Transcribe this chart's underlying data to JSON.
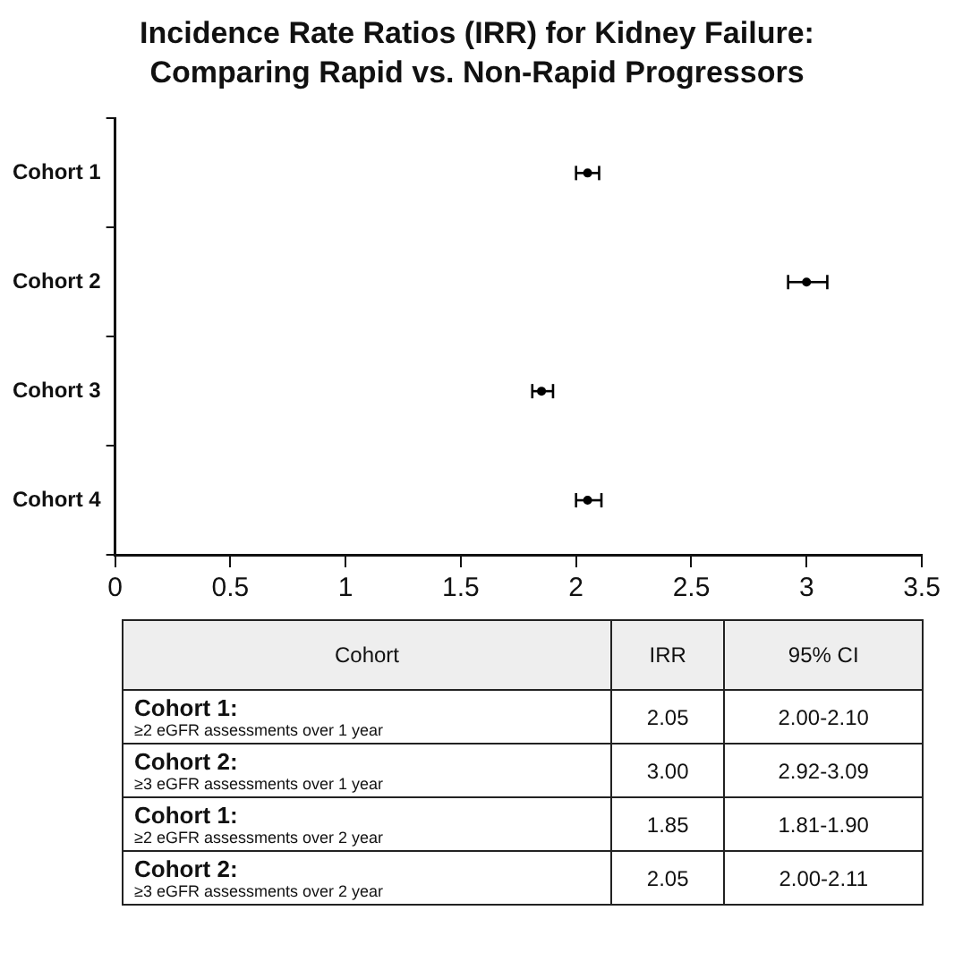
{
  "chart_data": {
    "type": "scatter",
    "title": "Incidence Rate Ratios (IRR) for Kidney Failure: Comparing Rapid vs. Non-Rapid Progressors",
    "orientation": "horizontal",
    "categories": [
      "Cohort 1",
      "Cohort 2",
      "Cohort 3",
      "Cohort 4"
    ],
    "values": [
      2.05,
      3.0,
      1.85,
      2.05
    ],
    "errors": [
      [
        2.0,
        2.1
      ],
      [
        2.92,
        3.09
      ],
      [
        1.81,
        1.9
      ],
      [
        2.0,
        2.11
      ]
    ],
    "color": "#000000",
    "marker": "circle",
    "xlim": [
      0,
      3.5
    ],
    "xticks": [
      0,
      0.5,
      1,
      1.5,
      2,
      2.5,
      3,
      3.5
    ],
    "grid": false,
    "legend": false,
    "annotations": [
      "Cohort",
      "IRR",
      "95% CI",
      "Cohort 1:",
      "≥2 eGFR assessments over 1 year",
      "2.05",
      "2.00-2.10",
      "Cohort 2:",
      "≥3 eGFR assessments over 1 year",
      "3.00",
      "2.92-3.09",
      "Cohort 1:",
      "≥2 eGFR assessments over 2 year",
      "1.85",
      "1.81-1.90",
      "Cohort 2:",
      "≥3 eGFR assessments over 2 year",
      "2.05",
      "2.00-2.11"
    ]
  }
}
